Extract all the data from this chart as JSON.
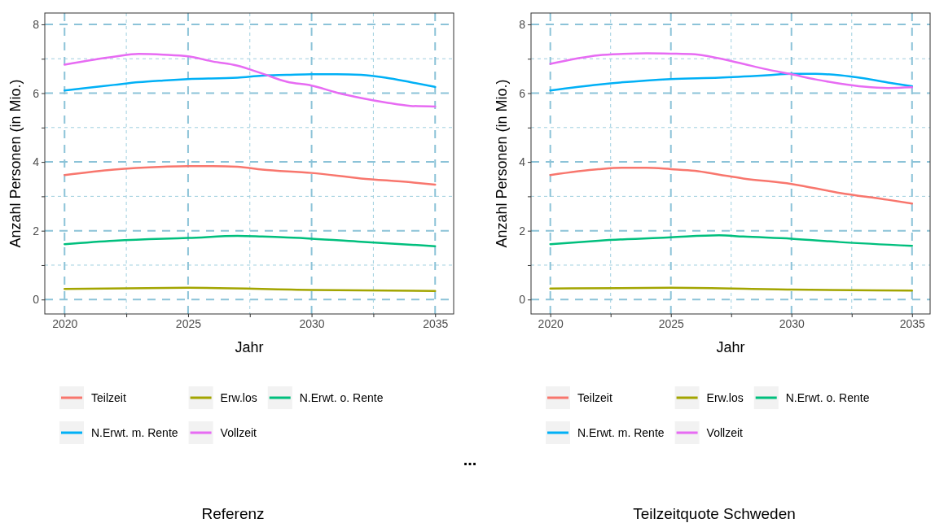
{
  "chart_data": [
    {
      "type": "line",
      "xlabel": "Jahr",
      "ylabel": "Anzahl Personen (in Mio.)",
      "xlim": [
        2019.2,
        2035.75
      ],
      "xticks": [
        2020,
        {
          "value": 2022.5,
          "label": null
        },
        2025,
        {
          "value": 2027.5,
          "label": null
        },
        2030,
        {
          "value": 2032.5,
          "label": null
        },
        2035
      ],
      "ylim": [
        -0.42,
        8.33
      ],
      "yticks": [
        0,
        {
          "value": 1,
          "label": null
        },
        2,
        {
          "value": 3,
          "label": null
        },
        4,
        {
          "value": 5,
          "label": null
        },
        6,
        {
          "value": 7,
          "label": null
        },
        8
      ],
      "grid": true,
      "legend": "bottom",
      "line_style": "solid",
      "marker": "none",
      "annotations": [
        "...",
        "Referenz"
      ],
      "series": [
        {
          "name": "Teilzeit",
          "color": "#f8766d",
          "x": [
            2020,
            2022,
            2024,
            2025,
            2026,
            2027,
            2028,
            2030,
            2032,
            2034,
            2035
          ],
          "values": [
            3.62,
            3.78,
            3.86,
            3.88,
            3.88,
            3.86,
            3.78,
            3.68,
            3.52,
            3.41,
            3.34
          ]
        },
        {
          "name": "Erw.los",
          "color": "#a3a500",
          "x": [
            2020,
            2025,
            2030,
            2035
          ],
          "values": [
            0.31,
            0.34,
            0.28,
            0.25
          ]
        },
        {
          "name": "N.Erwt. o. Rente",
          "color": "#00bf7d",
          "x": [
            2020,
            2022,
            2024,
            2025,
            2027,
            2028,
            2030,
            2032,
            2035
          ],
          "values": [
            1.61,
            1.71,
            1.77,
            1.79,
            1.85,
            1.83,
            1.77,
            1.68,
            1.55
          ]
        },
        {
          "name": "N.Erwt. m. Rente",
          "color": "#00b0f6",
          "x": [
            2020,
            2021,
            2022,
            2023,
            2024,
            2025,
            2027,
            2028,
            2029,
            2030,
            2031,
            2032,
            2033,
            2034,
            2035
          ],
          "values": [
            6.08,
            6.16,
            6.24,
            6.32,
            6.37,
            6.41,
            6.45,
            6.51,
            6.53,
            6.55,
            6.55,
            6.53,
            6.45,
            6.32,
            6.18
          ]
        },
        {
          "name": "Vollzeit",
          "color": "#e76bf3",
          "x": [
            2020,
            2022,
            2023,
            2024,
            2025,
            2026,
            2027,
            2028,
            2029,
            2030,
            2031,
            2032,
            2033,
            2034,
            2035
          ],
          "values": [
            6.83,
            7.06,
            7.14,
            7.12,
            7.07,
            6.92,
            6.8,
            6.57,
            6.33,
            6.22,
            6.02,
            5.86,
            5.73,
            5.63,
            5.61
          ]
        }
      ]
    },
    {
      "type": "line",
      "xlabel": "Jahr",
      "ylabel": "Anzahl Personen (in Mio.)",
      "xlim": [
        2019.2,
        2035.75
      ],
      "xticks": [
        2020,
        {
          "value": 2022.5,
          "label": null
        },
        2025,
        {
          "value": 2027.5,
          "label": null
        },
        2030,
        {
          "value": 2032.5,
          "label": null
        },
        2035
      ],
      "ylim": [
        -0.42,
        8.33
      ],
      "yticks": [
        0,
        {
          "value": 1,
          "label": null
        },
        2,
        {
          "value": 3,
          "label": null
        },
        4,
        {
          "value": 5,
          "label": null
        },
        6,
        {
          "value": 7,
          "label": null
        },
        8
      ],
      "grid": true,
      "legend": "bottom",
      "line_style": "solid",
      "marker": "none",
      "annotations": [
        "Teilzeitquote Schweden"
      ],
      "series": [
        {
          "name": "Teilzeit",
          "color": "#f8766d",
          "x": [
            2020,
            2022,
            2023,
            2024,
            2025,
            2026,
            2027,
            2028,
            2030,
            2032,
            2034,
            2035
          ],
          "values": [
            3.62,
            3.79,
            3.83,
            3.83,
            3.79,
            3.74,
            3.63,
            3.52,
            3.36,
            3.1,
            2.9,
            2.79
          ]
        },
        {
          "name": "Erw.los",
          "color": "#a3a500",
          "x": [
            2020,
            2025,
            2030,
            2035
          ],
          "values": [
            0.32,
            0.34,
            0.29,
            0.26
          ]
        },
        {
          "name": "N.Erwt. o. Rente",
          "color": "#00bf7d",
          "x": [
            2020,
            2022,
            2025,
            2027,
            2028,
            2030,
            2032,
            2035
          ],
          "values": [
            1.61,
            1.71,
            1.81,
            1.87,
            1.83,
            1.77,
            1.67,
            1.56
          ]
        },
        {
          "name": "N.Erwt. m. Rente",
          "color": "#00b0f6",
          "x": [
            2020,
            2022,
            2024,
            2025,
            2027,
            2029,
            2030,
            2031,
            2032,
            2033,
            2034,
            2035
          ],
          "values": [
            6.08,
            6.25,
            6.37,
            6.41,
            6.45,
            6.52,
            6.56,
            6.56,
            6.52,
            6.43,
            6.31,
            6.2
          ]
        },
        {
          "name": "Vollzeit",
          "color": "#e76bf3",
          "x": [
            2020,
            2022,
            2023,
            2024,
            2025,
            2026,
            2027,
            2028,
            2029,
            2030,
            2031,
            2032,
            2033,
            2034,
            2035
          ],
          "values": [
            6.85,
            7.1,
            7.14,
            7.16,
            7.15,
            7.13,
            7.01,
            6.85,
            6.69,
            6.55,
            6.4,
            6.28,
            6.19,
            6.15,
            6.17
          ]
        }
      ]
    }
  ]
}
